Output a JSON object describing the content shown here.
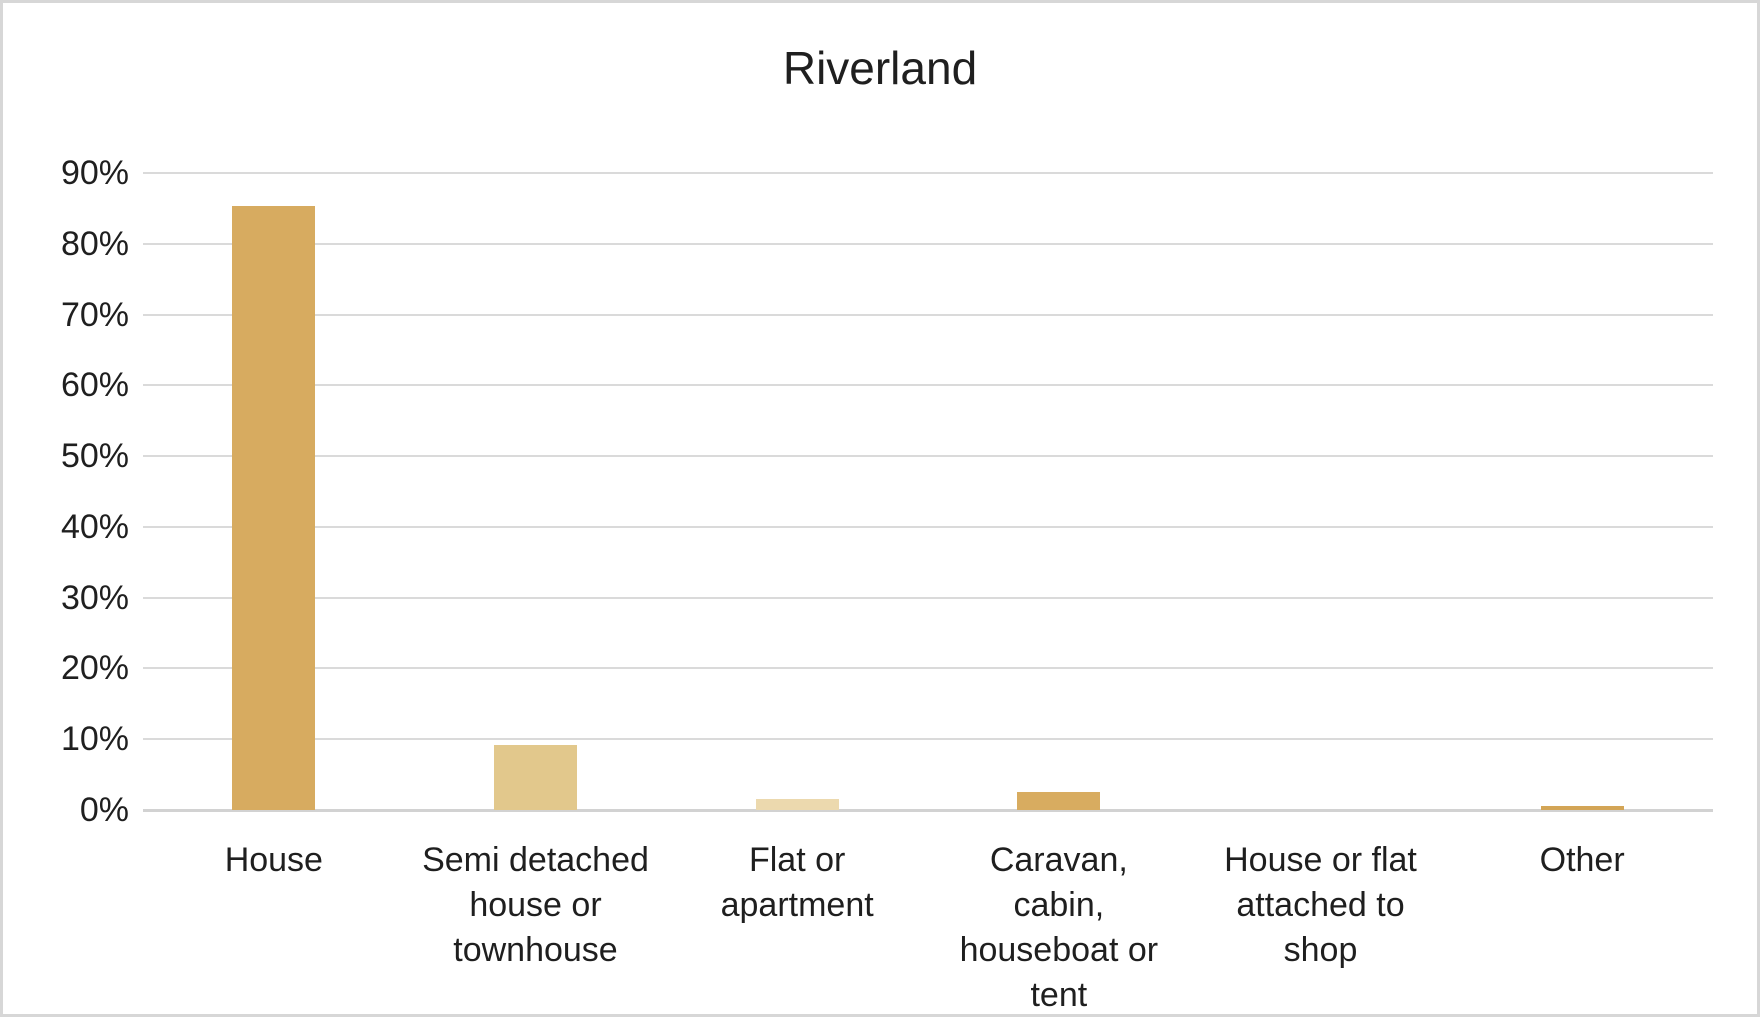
{
  "title": "Riverland",
  "chart_data": {
    "type": "bar",
    "title": "Riverland",
    "categories": [
      "House",
      "Semi detached house or townhouse",
      "Flat or apartment",
      "Caravan, cabin, houseboat or tent",
      "House or flat attached to shop",
      "Other"
    ],
    "values": [
      85.4,
      9.2,
      1.5,
      2.5,
      0,
      0.5
    ],
    "unit": "%",
    "ylim": [
      0,
      90
    ],
    "ytick_step": 10,
    "ytick_labels": [
      "0%",
      "10%",
      "20%",
      "30%",
      "40%",
      "50%",
      "60%",
      "70%",
      "80%",
      "90%"
    ],
    "grid": true,
    "legend": false,
    "bar_colors": [
      "#d7ab60",
      "#e2c88c",
      "#ecd9ae",
      "#d8ac60",
      "#e2c88c",
      "#d3a556"
    ],
    "gridline_color": "#dadada",
    "axis_line_color": "#d2d2d2",
    "text_color": "#1f1f1f",
    "background_color": "#ffffff",
    "border_color": "#d7d7d7"
  }
}
